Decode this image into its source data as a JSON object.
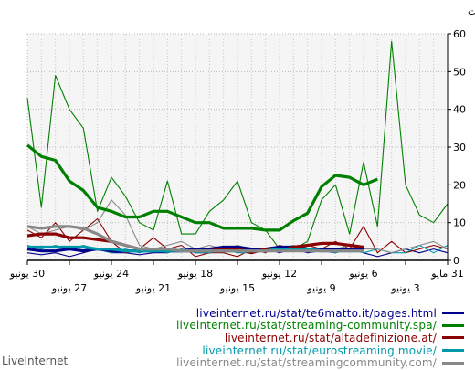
{
  "chart_data": {
    "type": "line",
    "ylabel": "المرات",
    "ylim": [
      0,
      60
    ],
    "yticks": [
      0,
      10,
      20,
      30,
      40,
      50,
      60
    ],
    "grid": true,
    "x": [
      "30 يونيو",
      "29 يونيو",
      "28 يونيو",
      "27 يونيو",
      "26 يونيو",
      "25 يونيو",
      "24 يونيو",
      "23 يونيو",
      "22 يونيو",
      "21 يونيو",
      "20 يونيو",
      "19 يونيو",
      "18 يونيو",
      "17 يونيو",
      "16 يونيو",
      "15 يونيو",
      "14 يونيو",
      "13 يونيو",
      "12 يونيو",
      "11 يونيو",
      "10 يونيو",
      "9 يونيو",
      "8 يونيو",
      "7 يونيو",
      "6 يونيو",
      "5 يونيو",
      "4 يونيو",
      "3 يونيو",
      "2 يونيو",
      "1 يونيو",
      "31 مايو"
    ],
    "xticks_row1": [
      {
        "i": 0,
        "label": "30 يونيو"
      },
      {
        "i": 6,
        "label": "24 يونيو"
      },
      {
        "i": 12,
        "label": "18 يونيو"
      },
      {
        "i": 18,
        "label": "12 يونيو"
      },
      {
        "i": 24,
        "label": "6 يونيو"
      },
      {
        "i": 30,
        "label": "31 مايو"
      }
    ],
    "xticks_row2": [
      {
        "i": 3,
        "label": "27 يونيو"
      },
      {
        "i": 9,
        "label": "21 يونيو"
      },
      {
        "i": 15,
        "label": "15 يونيو"
      },
      {
        "i": 21,
        "label": "9 يونيو"
      },
      {
        "i": 27,
        "label": "3 يونيو"
      }
    ],
    "series": [
      {
        "name": "liveinternet.ru/stat/te6matto.it/pages.html",
        "color": "#00008b",
        "kind": "thin",
        "values": [
          2,
          1.5,
          2,
          1,
          2,
          3,
          2,
          2,
          1.5,
          2,
          2,
          3,
          2,
          2,
          3,
          2,
          3,
          3,
          2,
          3,
          2,
          2.5,
          2,
          3,
          2,
          1,
          2,
          3,
          2,
          3,
          2
        ]
      },
      {
        "name": "liveinternet.ru/stat/te6matto.it/pages.html",
        "color": "#00008b",
        "kind": "thick",
        "values": [
          3,
          2.5,
          2.5,
          3,
          2.5,
          3,
          2.5,
          2.5,
          2.5,
          2.5,
          2.5,
          2.5,
          3,
          3,
          3.5,
          3.5,
          3,
          3,
          3.5,
          3.5,
          3,
          3,
          3,
          3,
          3,
          null,
          null,
          null,
          null,
          null,
          null
        ]
      },
      {
        "name": "liveinternet.ru/stat/streaming-community.spa/",
        "color": "#008000",
        "kind": "thin",
        "values": [
          43,
          14,
          49,
          40,
          35,
          13,
          22,
          17,
          10,
          8,
          21,
          7,
          7,
          13,
          16,
          21,
          10,
          8,
          3,
          3,
          5,
          16,
          20,
          7,
          26,
          9,
          58,
          20,
          12,
          10,
          15
        ]
      },
      {
        "name": "liveinternet.ru/stat/streaming-community.spa/",
        "color": "#008000",
        "kind": "thick",
        "values": [
          30.5,
          27.5,
          26.5,
          21,
          18.5,
          14,
          13,
          11.5,
          11.5,
          13,
          13,
          11.5,
          10,
          10,
          8.5,
          8.5,
          8.5,
          8,
          8,
          10.5,
          12.5,
          19.5,
          22.5,
          22,
          20,
          21.5,
          null,
          null,
          null,
          null,
          null
        ]
      },
      {
        "name": "liveinternet.ru/stat/altadefinizione.at/",
        "color": "#8b0000",
        "kind": "thin",
        "values": [
          8,
          6,
          10,
          5,
          8,
          11,
          5,
          2,
          3,
          6,
          3,
          4,
          1,
          2,
          2,
          1,
          3,
          2,
          4,
          3,
          4,
          3,
          5,
          3,
          9,
          2,
          5,
          2,
          3,
          4,
          3
        ]
      },
      {
        "name": "liveinternet.ru/stat/altadefinizione.at/",
        "color": "#8b0000",
        "kind": "thick",
        "values": [
          6.5,
          7,
          7,
          6,
          6,
          5.5,
          5,
          4,
          3,
          3,
          2.5,
          2.5,
          2.5,
          2.5,
          3,
          3,
          2,
          3,
          2.5,
          3.5,
          4,
          4.5,
          4.5,
          4,
          3.5,
          null,
          null,
          null,
          null,
          null,
          null
        ]
      },
      {
        "name": "liveinternet.ru/stat/eurostreaming.movie/",
        "color": "#0099aa",
        "kind": "thin",
        "values": [
          4,
          3,
          4,
          3,
          4,
          3,
          2,
          3,
          2,
          3,
          2,
          3,
          2,
          2,
          3,
          2,
          2,
          3,
          3,
          4,
          3,
          3,
          2,
          3,
          2,
          3,
          2,
          2,
          4,
          2,
          4
        ]
      },
      {
        "name": "liveinternet.ru/stat/eurostreaming.movie/",
        "color": "#0099aa",
        "kind": "thick",
        "values": [
          3.5,
          3.5,
          3.5,
          3.5,
          3.5,
          3,
          3,
          2.5,
          2.5,
          2.5,
          2.5,
          2.5,
          2.5,
          2.5,
          2.5,
          2.5,
          2.5,
          2.5,
          3,
          3,
          3,
          2.5,
          2.5,
          2.5,
          2.5,
          null,
          null,
          null,
          null,
          null,
          null
        ]
      },
      {
        "name": "liveinternet.ru/stat/streamingcommunity.com/",
        "color": "#888888",
        "kind": "thin",
        "values": [
          9,
          7,
          8,
          9,
          8,
          10,
          16,
          12,
          4,
          3,
          4,
          5,
          3,
          4,
          3,
          4,
          3,
          3,
          3,
          4,
          3,
          3,
          3,
          4,
          3,
          3,
          2,
          3,
          4,
          5,
          3
        ]
      },
      {
        "name": "liveinternet.ru/stat/streamingcommunity.com/",
        "color": "#888888",
        "kind": "thick",
        "values": [
          9,
          8.5,
          9,
          9,
          8.5,
          7,
          5,
          4,
          3,
          3,
          3,
          2.5,
          2.5,
          2.5,
          2.5,
          2.5,
          2.5,
          2.5,
          2.5,
          2.5,
          2.5,
          2.5,
          2.5,
          2.5,
          2.5,
          null,
          null,
          null,
          null,
          null,
          null
        ]
      }
    ]
  },
  "legend": [
    {
      "label": "liveinternet.ru/stat/te6matto.it/pages.html",
      "color": "#00008b"
    },
    {
      "label": "liveinternet.ru/stat/streaming-community.spa/",
      "color": "#008000"
    },
    {
      "label": "liveinternet.ru/stat/altadefinizione.at/",
      "color": "#8b0000"
    },
    {
      "label": "liveinternet.ru/stat/eurostreaming.movie/",
      "color": "#0099aa"
    },
    {
      "label": "liveinternet.ru/stat/streamingcommunity.com/",
      "color": "#888888"
    }
  ],
  "watermark": "LiveInternet"
}
